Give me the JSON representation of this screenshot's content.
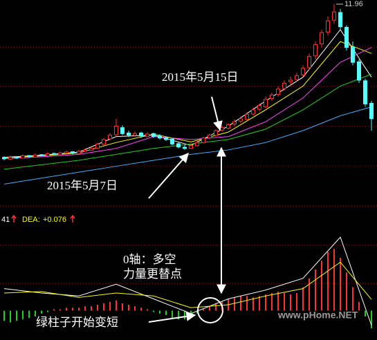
{
  "chart_data": [
    {
      "type": "candlestick",
      "open": [
        6.8,
        6.74,
        6.81,
        6.77,
        6.86,
        6.81,
        6.89,
        6.85,
        6.93,
        6.89,
        6.94,
        6.99,
        6.93,
        7.01,
        7.04,
        7.11,
        7.24,
        7.42,
        7.56,
        7.8,
        7.62,
        7.54,
        7.62,
        7.5,
        7.6,
        7.52,
        7.46,
        7.42,
        7.26,
        7.14,
        7.1,
        7.19,
        7.3,
        7.46,
        7.54,
        7.72,
        7.78,
        7.92,
        8.02,
        8.08,
        8.26,
        8.42,
        8.5,
        8.78,
        8.92,
        9.12,
        9.35,
        9.42,
        9.58,
        9.82,
        10.22,
        10.62,
        11.02,
        11.42,
        11.68,
        11.18,
        10.52,
        10.02,
        9.38,
        8.62
      ],
      "high": [
        6.84,
        6.85,
        6.83,
        6.9,
        6.88,
        6.93,
        6.91,
        6.97,
        6.96,
        7.0,
        7.03,
        7.01,
        7.06,
        7.1,
        7.15,
        7.3,
        7.45,
        7.62,
        8.1,
        7.88,
        7.7,
        7.68,
        7.66,
        7.65,
        7.63,
        7.58,
        7.5,
        7.44,
        7.3,
        7.22,
        7.25,
        7.35,
        7.5,
        7.6,
        7.75,
        7.88,
        7.95,
        8.08,
        8.18,
        8.32,
        8.48,
        8.62,
        8.85,
        8.98,
        9.2,
        9.4,
        9.52,
        9.65,
        9.9,
        10.3,
        10.7,
        11.1,
        11.55,
        11.96,
        11.8,
        11.25,
        10.7,
        10.1,
        9.45,
        8.7
      ],
      "low": [
        6.7,
        6.72,
        6.74,
        6.76,
        6.79,
        6.8,
        6.83,
        6.84,
        6.87,
        6.88,
        6.92,
        6.9,
        6.92,
        6.99,
        7.02,
        7.08,
        7.2,
        7.38,
        7.5,
        7.55,
        7.48,
        7.5,
        7.45,
        7.48,
        7.45,
        7.4,
        7.35,
        7.2,
        7.1,
        7.05,
        7.08,
        7.16,
        7.28,
        7.4,
        7.5,
        7.66,
        7.74,
        7.85,
        7.95,
        8.05,
        8.2,
        8.35,
        8.45,
        8.7,
        8.85,
        9.05,
        9.2,
        9.35,
        9.5,
        9.75,
        10.1,
        10.5,
        10.9,
        11.3,
        11.1,
        10.4,
        9.9,
        9.3,
        8.5,
        7.7
      ],
      "close": [
        6.75,
        6.8,
        6.78,
        6.85,
        6.82,
        6.88,
        6.86,
        6.92,
        6.9,
        6.95,
        6.98,
        6.94,
        7.0,
        7.05,
        7.1,
        7.25,
        7.4,
        7.55,
        7.85,
        7.6,
        7.55,
        7.6,
        7.52,
        7.58,
        7.5,
        7.45,
        7.4,
        7.25,
        7.15,
        7.1,
        7.2,
        7.3,
        7.45,
        7.55,
        7.7,
        7.8,
        7.9,
        8.0,
        8.1,
        8.25,
        8.4,
        8.55,
        8.75,
        8.9,
        9.1,
        9.3,
        9.4,
        9.55,
        9.8,
        10.2,
        10.6,
        11.0,
        11.4,
        11.7,
        11.2,
        10.5,
        10.0,
        9.4,
        8.6,
        8.1
      ],
      "up_color": "#ff3232",
      "down_color": "#54ffff",
      "ylim": [
        5,
        12.1
      ],
      "ma_x": [
        0,
        6,
        12,
        18,
        24,
        30,
        36,
        42,
        48,
        54,
        59
      ],
      "lines": [
        {
          "color": "#ffffff",
          "values": [
            6.8,
            6.87,
            6.98,
            7.5,
            7.55,
            7.2,
            7.85,
            8.7,
            9.5,
            11.1,
            9.5
          ]
        },
        {
          "color": "#ffff00",
          "values": [
            6.78,
            6.85,
            6.95,
            7.3,
            7.58,
            7.32,
            7.65,
            8.4,
            9.2,
            10.7,
            10.3
          ]
        },
        {
          "color": "#ff40ff",
          "values": [
            6.75,
            6.82,
            6.9,
            7.1,
            7.5,
            7.4,
            7.5,
            8.0,
            8.8,
            10.0,
            10.5
          ]
        },
        {
          "color": "#20d020",
          "values": [
            6.4,
            6.55,
            6.7,
            6.9,
            7.1,
            7.25,
            7.4,
            7.75,
            8.4,
            9.2,
            9.6
          ]
        },
        {
          "color": "#40b0ff",
          "values": [
            5.9,
            6.1,
            6.3,
            6.5,
            6.7,
            6.9,
            7.05,
            7.3,
            7.7,
            8.2,
            8.5
          ]
        }
      ]
    },
    {
      "type": "macd",
      "ylim": [
        -0.2,
        0.6
      ],
      "histogram": [
        -0.07,
        -0.08,
        -0.07,
        -0.06,
        -0.05,
        -0.04,
        -0.02,
        -0.01,
        0.01,
        0.01,
        0.02,
        0.02,
        0.02,
        0.03,
        0.03,
        0.04,
        0.05,
        0.06,
        0.07,
        0.05,
        0.04,
        0.03,
        0.02,
        0.01,
        -0.01,
        -0.02,
        -0.03,
        -0.05,
        -0.06,
        -0.06,
        -0.04,
        -0.02,
        0.01,
        0.03,
        0.05,
        0.06,
        0.08,
        0.09,
        0.1,
        0.1,
        0.09,
        0.1,
        0.11,
        0.12,
        0.13,
        0.12,
        0.11,
        0.12,
        0.16,
        0.22,
        0.28,
        0.34,
        0.4,
        0.42,
        0.36,
        0.26,
        0.16,
        0.06,
        -0.04,
        -0.12
      ],
      "hist_up_color": "#ff3232",
      "hist_down_color": "#20d020",
      "line_x": [
        0,
        6,
        12,
        18,
        24,
        30,
        36,
        42,
        48,
        54,
        59
      ],
      "dif": {
        "color": "#ffffff",
        "values": [
          0.15,
          0.12,
          0.1,
          0.18,
          0.08,
          -0.02,
          0.08,
          0.14,
          0.22,
          0.5,
          -0.1
        ],
        "label_fragment": "41"
      },
      "dea": {
        "name": "DEA:",
        "color": "#ffff00",
        "values": [
          0.12,
          0.13,
          0.09,
          0.12,
          0.1,
          0.02,
          0.04,
          0.1,
          0.15,
          0.33,
          0.076
        ],
        "last_label": "+0.076"
      }
    }
  ],
  "annotations": [
    "2015年5月15日",
    "2015年5月7日",
    "0轴：多空",
    "力量更替点",
    "绿柱子开始变短"
  ],
  "watermark": "www.pHome.NET"
}
